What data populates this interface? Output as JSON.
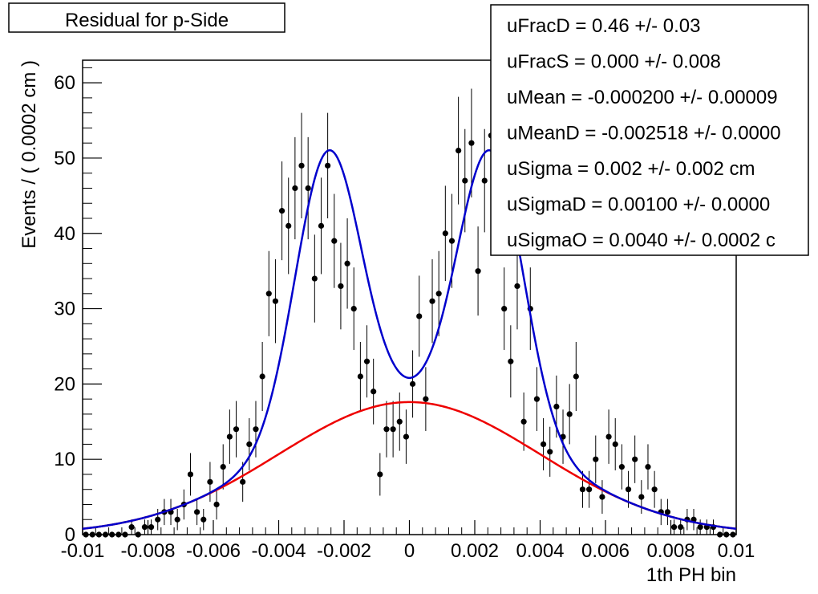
{
  "chart_data": {
    "type": "scatter",
    "title": "Residual for p-Side",
    "xlabel": "1th PH bin",
    "ylabel": "Events / ( 0.0002 cm )",
    "xlim": [
      -0.01,
      0.01
    ],
    "ylim": [
      0,
      63
    ],
    "x_ticks": [
      -0.01,
      -0.008,
      -0.006,
      -0.004,
      -0.002,
      0,
      0.002,
      0.004,
      0.006,
      0.008,
      0.01
    ],
    "x_tick_labels": [
      "-0.01",
      "-0.008",
      "-0.006",
      "-0.004",
      "-0.002",
      "0",
      "0.002",
      "0.004",
      "0.006",
      "0.008",
      "0.01"
    ],
    "y_ticks": [
      0,
      10,
      20,
      30,
      40,
      50,
      60
    ],
    "y_tick_labels": [
      "0",
      "10",
      "20",
      "30",
      "40",
      "50",
      "60"
    ],
    "grid": false,
    "colors": {
      "data": "#000000",
      "total_fit": "#0000cc",
      "background_fit": "#ee0000",
      "signal_fit": "#8a2be2"
    },
    "stats_box": {
      "position": "top-right",
      "lines": [
        "uFracD =  0.46 +/- 0.03",
        "uFracS =  0.000 +/- 0.008",
        "uMean = -0.000200 +/- 0.00009",
        "uMeanD = -0.002518 +/- 0.0000",
        "uSigma =  0.002 +/- 0.002 cm",
        "uSigmaD =  0.00100 +/- 0.0000",
        "uSigmaO =  0.0040 +/- 0.0002 c"
      ]
    },
    "series": [
      {
        "kind": "points_with_errors",
        "x": [
          -0.0099,
          -0.0097,
          -0.0095,
          -0.0093,
          -0.0091,
          -0.0089,
          -0.0087,
          -0.0085,
          -0.0083,
          -0.0081,
          -0.0079,
          -0.0077,
          -0.0075,
          -0.0073,
          -0.0071,
          -0.0069,
          -0.0067,
          -0.0065,
          -0.0063,
          -0.0061,
          -0.0059,
          -0.0057,
          -0.0055,
          -0.0053,
          -0.0051,
          -0.0049,
          -0.0047,
          -0.0045,
          -0.0043,
          -0.0041,
          -0.0039,
          -0.0037,
          -0.0035,
          -0.0033,
          -0.0031,
          -0.0029,
          -0.0027,
          -0.0025,
          -0.0023,
          -0.0021,
          -0.0019,
          -0.0017,
          -0.0015,
          -0.0013,
          -0.0011,
          -0.0009,
          -0.0007,
          -0.0005,
          -0.0003,
          -0.0001,
          0.0001,
          0.0003,
          0.0005,
          0.0007,
          0.0009,
          0.0011,
          0.0013,
          0.0015,
          0.0017,
          0.0019,
          0.0021,
          0.0023,
          0.0025,
          0.0027,
          0.0029,
          0.0031,
          0.0033,
          0.0035,
          0.0037,
          0.0039,
          0.0041,
          0.0043,
          0.0045,
          0.0047,
          0.0049,
          0.0051,
          0.0053,
          0.0055,
          0.0057,
          0.0059,
          0.0061,
          0.0063,
          0.0065,
          0.0067,
          0.0069,
          0.0071,
          0.0073,
          0.0075,
          0.0077,
          0.0079,
          0.0081,
          0.0083,
          0.0085,
          0.0087,
          0.0089,
          0.0091,
          0.0093,
          0.0095,
          0.0097,
          0.0099
        ],
        "y": [
          0,
          0,
          0,
          0,
          0,
          0,
          0,
          1,
          0,
          1,
          1,
          2,
          3,
          3,
          2,
          4,
          8,
          3,
          2,
          7,
          4,
          9,
          13,
          14,
          7,
          12,
          14,
          21,
          32,
          31,
          43,
          41,
          46,
          49,
          46,
          34,
          41,
          49,
          39,
          33,
          36,
          30,
          21,
          23,
          19,
          8,
          14,
          14,
          15,
          13,
          20,
          29,
          18,
          31,
          32,
          40,
          39,
          51,
          47,
          52,
          35,
          47,
          53,
          44,
          30,
          23,
          33,
          15,
          30,
          18,
          12,
          11,
          17,
          13,
          16,
          21,
          6,
          6,
          10,
          5,
          13,
          12,
          9,
          6,
          10,
          5,
          9,
          6,
          3,
          3,
          1,
          1,
          2,
          2,
          1,
          1,
          1,
          0,
          0,
          0
        ]
      },
      {
        "kind": "curve",
        "name": "total fit",
        "mean_d": -0.0025,
        "sigma_d": 0.001,
        "mean_s": 0.0025,
        "sigma_s": 0.001,
        "mean_bg": 0.0,
        "sigma_bg": 0.004,
        "peak_bg": 17.6,
        "peak_gauss": 36.5
      }
    ]
  }
}
